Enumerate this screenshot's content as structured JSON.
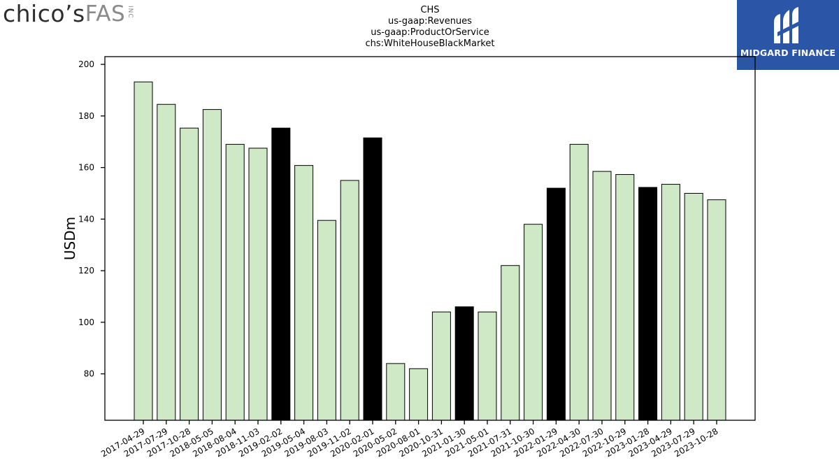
{
  "logos": {
    "left": {
      "main": "chico’s",
      "fas": "FAS",
      "inc": "INC"
    },
    "right": {
      "brand": "MIDGARD FINANCE",
      "mark_icon": "midgard-mark-icon",
      "color": "#2b55a6"
    }
  },
  "chart_data": {
    "type": "bar",
    "title_lines": [
      "CHS",
      "us-gaap:Revenues",
      "us-gaap:ProductOrService",
      "chs:WhiteHouseBlackMarket"
    ],
    "xlabel": "",
    "ylabel": "USDm",
    "ylim": [
      62,
      203
    ],
    "yticks": [
      80,
      100,
      120,
      140,
      160,
      180,
      200
    ],
    "colors": {
      "default": "#cfe9c6",
      "highlight": "#000000",
      "edge": "#000000"
    },
    "categories": [
      "2017-04-29",
      "2017-07-29",
      "2017-10-28",
      "2018-05-05",
      "2018-08-04",
      "2018-11-03",
      "2019-02-02",
      "2019-05-04",
      "2019-08-03",
      "2019-11-02",
      "2020-02-01",
      "2020-05-02",
      "2020-08-01",
      "2020-10-31",
      "2021-01-30",
      "2021-05-01",
      "2021-07-31",
      "2021-10-30",
      "2022-01-29",
      "2022-04-30",
      "2022-07-30",
      "2022-10-29",
      "2023-01-28",
      "2023-04-29",
      "2023-07-29",
      "2023-10-28"
    ],
    "values": [
      193.2,
      184.5,
      175.3,
      182.5,
      169.0,
      167.5,
      175.3,
      160.8,
      139.5,
      155.0,
      171.5,
      84.0,
      82.0,
      104.0,
      106.0,
      104.0,
      122.0,
      138.0,
      152.0,
      169.0,
      158.5,
      157.3,
      152.3,
      153.5,
      150.0,
      147.5
    ],
    "highlighted": [
      false,
      false,
      false,
      false,
      false,
      false,
      true,
      false,
      false,
      false,
      true,
      false,
      false,
      false,
      true,
      false,
      false,
      false,
      true,
      false,
      false,
      false,
      true,
      false,
      false,
      false
    ],
    "grid": false,
    "legend": "none"
  }
}
